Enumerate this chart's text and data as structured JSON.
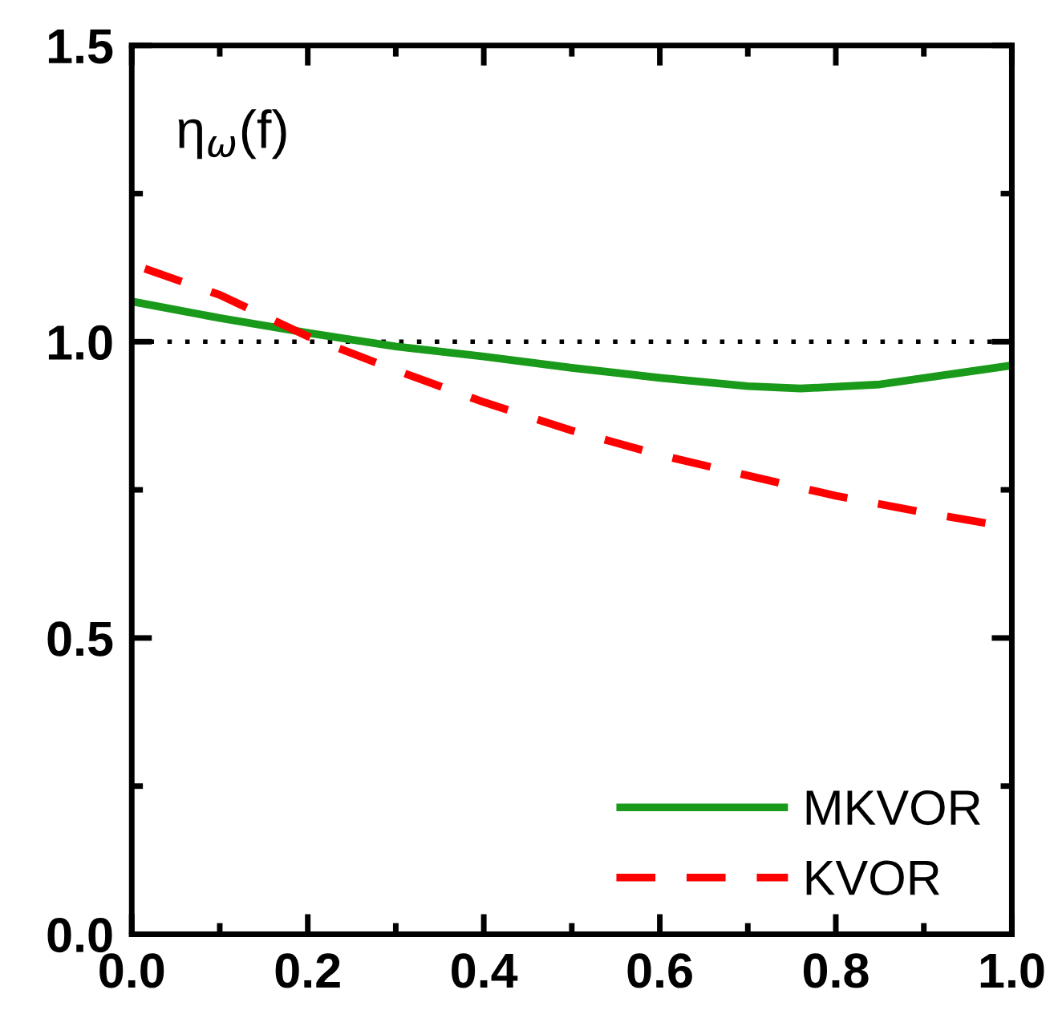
{
  "chart_data": {
    "type": "line",
    "annotations": [
      "η$_{ω}$(f)"
    ],
    "series": [
      {
        "name": "MKVOR",
        "color": "#1a9a1a",
        "line_style": "solid",
        "x": [
          0.0,
          0.1,
          0.2,
          0.3,
          0.4,
          0.5,
          0.6,
          0.7,
          0.76,
          0.85,
          1.0
        ],
        "values": [
          1.068,
          1.04,
          1.015,
          0.992,
          0.975,
          0.956,
          0.939,
          0.925,
          0.921,
          0.928,
          0.96
        ]
      },
      {
        "name": "KVOR",
        "color": "#ff0000",
        "line_style": "dashed",
        "x": [
          0.0,
          0.1,
          0.2,
          0.3,
          0.4,
          0.5,
          0.6,
          0.7,
          0.8,
          0.9,
          0.97
        ],
        "values": [
          1.131,
          1.079,
          1.009,
          0.952,
          0.898,
          0.85,
          0.809,
          0.774,
          0.74,
          0.712,
          0.694
        ]
      }
    ],
    "ref_lines": [
      {
        "axis": "y",
        "value": 1.0,
        "color": "#000000",
        "line_style": "dotted"
      }
    ],
    "xlim": [
      0.0,
      1.0
    ],
    "xticks": [
      {
        "value": 0.0,
        "label": "0.0"
      },
      0.2,
      0.4,
      0.6,
      0.8,
      {
        "value": 1.0,
        "label": "1.0"
      }
    ],
    "ylim": [
      0.0,
      1.5
    ],
    "yticks": [
      {
        "value": 0.0,
        "label": "0.0"
      },
      0.5,
      {
        "value": 1.0,
        "label": "1.0"
      },
      1.5
    ],
    "grid": false,
    "legend": "bottom right",
    "marker": "none"
  }
}
